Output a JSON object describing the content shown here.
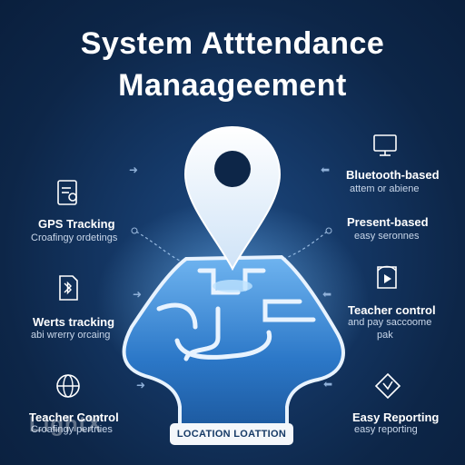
{
  "title": {
    "line1": "System Atttendance",
    "line2": "Manaageement"
  },
  "features": {
    "gps": {
      "label": "GPS Tracking",
      "sub": "Croafingy ordetings",
      "icon": "document-edit-icon"
    },
    "bluetooth_doc": {
      "label": "Werts tracking",
      "sub": "abi wrerry orcaing",
      "icon": "bluetooth-document-icon"
    },
    "teacher_left": {
      "label": "Teacher Control",
      "sub": "Croafingy pertrties",
      "icon": "globe-icon"
    },
    "bluetooth_based": {
      "label": "Bluetooth-based",
      "sub": "attem or abiene",
      "icon": "monitor-icon"
    },
    "present_based": {
      "label": "Present-based",
      "sub": "easy seronnes",
      "icon": "none"
    },
    "teacher_right": {
      "label": "Teacher control",
      "sub": "and pay saccoome",
      "sub2": "pak",
      "icon": "play-document-icon"
    },
    "easy_reporting": {
      "label": "Easy Reporting",
      "sub": "easy reporting",
      "icon": "tag-icon"
    }
  },
  "badge": {
    "text": "LOCATION LOATTION"
  },
  "watermark": {
    "text": "LightX"
  },
  "colors": {
    "background": "#0d2648",
    "pin": "#ffffff",
    "map": "#2f7fd1",
    "map_light": "#5aa6ea"
  }
}
